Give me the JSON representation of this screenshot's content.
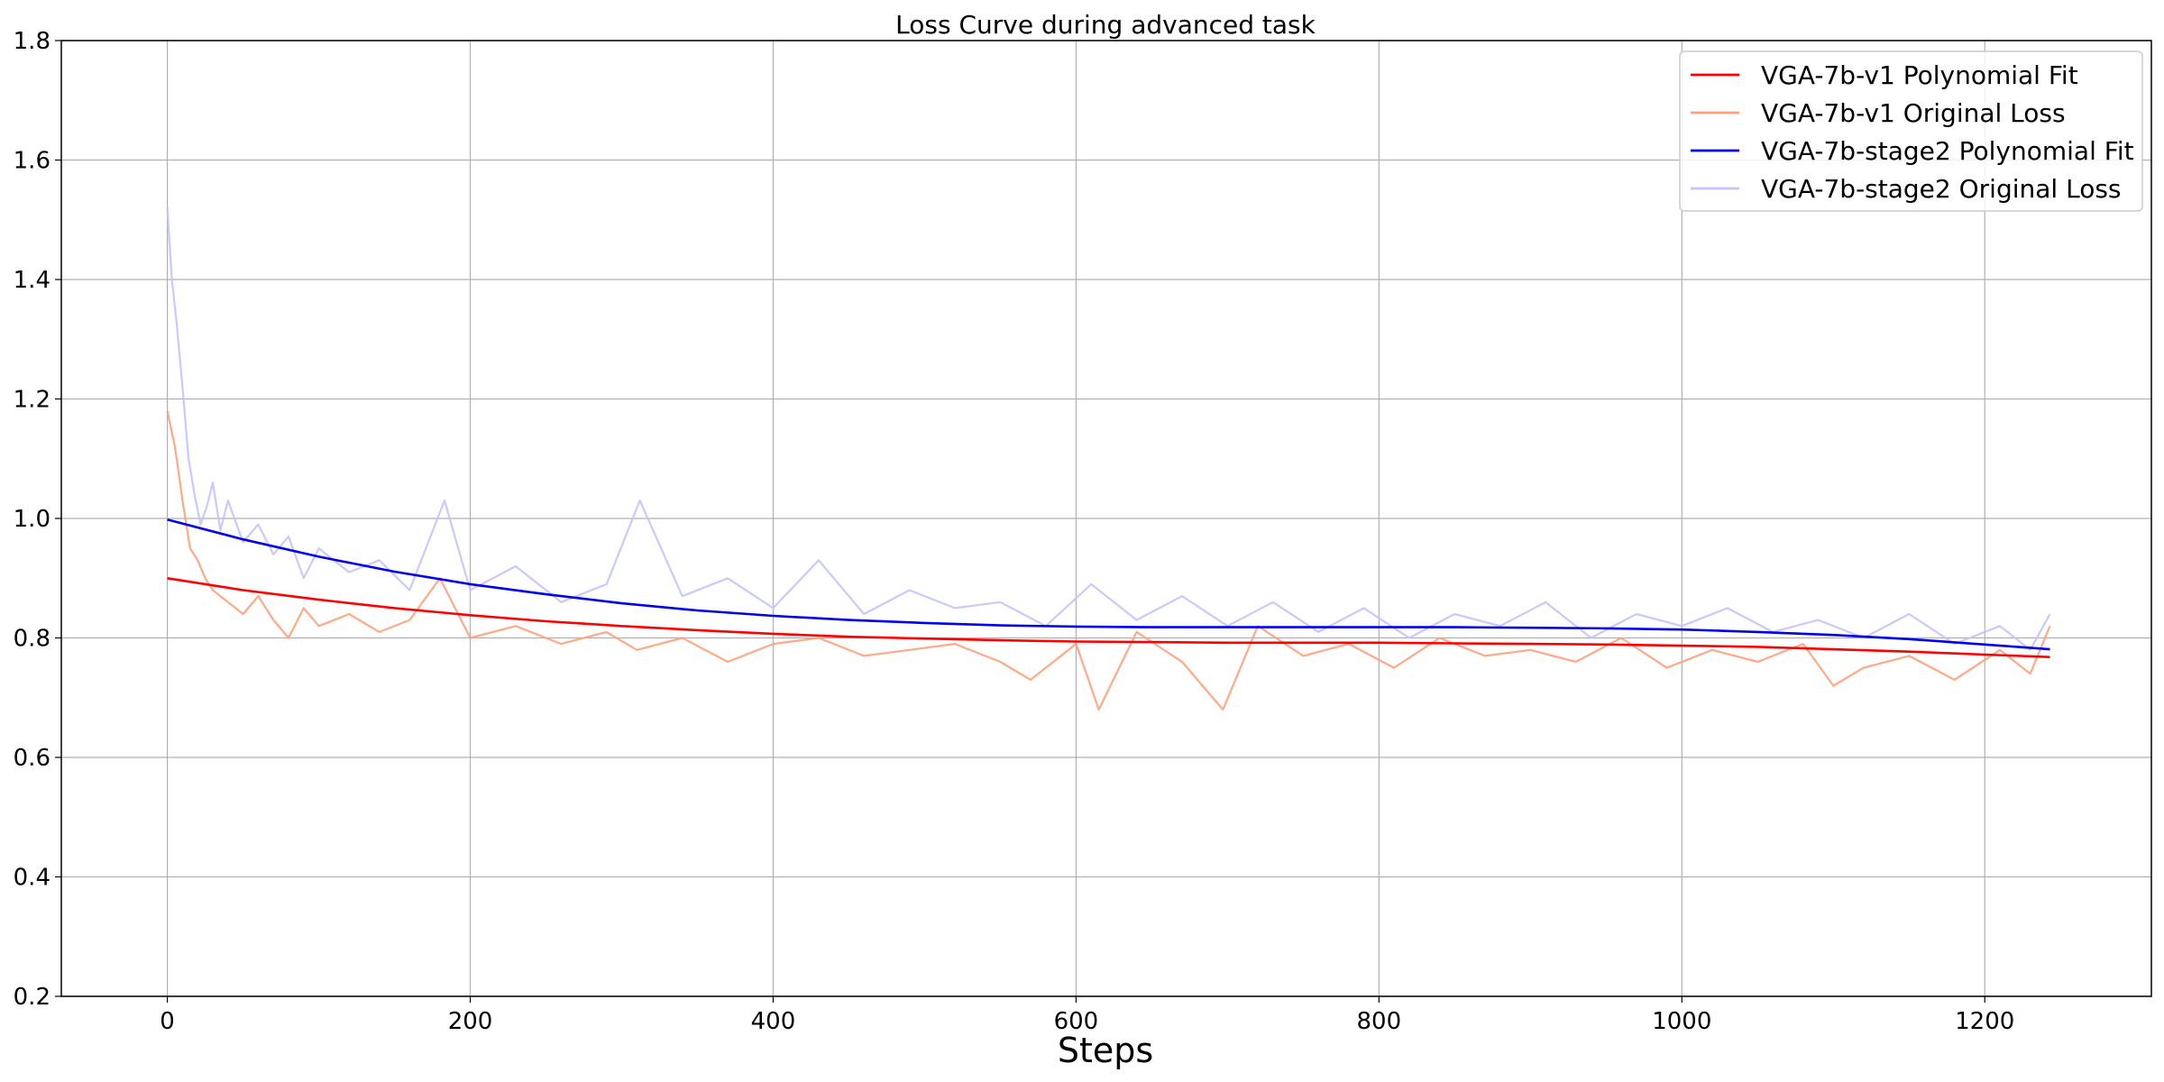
{
  "chart_data": {
    "type": "line",
    "title": "Loss Curve during advanced task",
    "xlabel": "Steps",
    "ylabel": "",
    "xlim": [
      -70,
      1310
    ],
    "ylim": [
      0.2,
      1.8
    ],
    "xticks": [
      0,
      200,
      400,
      600,
      800,
      1000,
      1200
    ],
    "yticks": [
      0.2,
      0.4,
      0.6,
      0.8,
      1.0,
      1.2,
      1.4,
      1.6,
      1.8
    ],
    "ytick_labels": [
      "0.2",
      "0.4",
      "0.6",
      "0.8",
      "1.0",
      "1.2",
      "1.4",
      "1.6",
      "1.8"
    ],
    "grid": true,
    "legend_position": "top-right",
    "series": [
      {
        "name": "VGA-7b-v1 Polynomial Fit",
        "color": "#ff0000",
        "style": "fit",
        "x": [
          0,
          50,
          100,
          150,
          200,
          250,
          300,
          350,
          400,
          450,
          500,
          550,
          600,
          650,
          700,
          750,
          800,
          850,
          900,
          950,
          1000,
          1050,
          1100,
          1150,
          1200,
          1243
        ],
        "y": [
          0.9,
          0.88,
          0.864,
          0.85,
          0.838,
          0.828,
          0.82,
          0.813,
          0.807,
          0.802,
          0.799,
          0.796,
          0.794,
          0.793,
          0.792,
          0.792,
          0.792,
          0.791,
          0.79,
          0.789,
          0.787,
          0.785,
          0.781,
          0.777,
          0.772,
          0.768
        ]
      },
      {
        "name": "VGA-7b-v1 Original Loss",
        "color": "#ffa07a",
        "style": "raw",
        "x": [
          0,
          5,
          10,
          15,
          20,
          25,
          30,
          40,
          50,
          60,
          70,
          80,
          90,
          100,
          120,
          140,
          160,
          180,
          200,
          230,
          260,
          290,
          310,
          340,
          370,
          400,
          430,
          460,
          490,
          520,
          550,
          570,
          600,
          615,
          640,
          670,
          697,
          720,
          750,
          780,
          810,
          840,
          870,
          900,
          930,
          960,
          990,
          1020,
          1050,
          1080,
          1100,
          1120,
          1150,
          1180,
          1210,
          1230,
          1243
        ],
        "y": [
          1.18,
          1.12,
          1.03,
          0.95,
          0.93,
          0.9,
          0.88,
          0.86,
          0.84,
          0.87,
          0.83,
          0.8,
          0.85,
          0.82,
          0.84,
          0.81,
          0.83,
          0.9,
          0.8,
          0.82,
          0.79,
          0.81,
          0.78,
          0.8,
          0.76,
          0.79,
          0.8,
          0.77,
          0.78,
          0.79,
          0.76,
          0.73,
          0.79,
          0.68,
          0.81,
          0.76,
          0.68,
          0.82,
          0.77,
          0.79,
          0.75,
          0.8,
          0.77,
          0.78,
          0.76,
          0.8,
          0.75,
          0.78,
          0.76,
          0.79,
          0.72,
          0.75,
          0.77,
          0.73,
          0.78,
          0.74,
          0.82
        ]
      },
      {
        "name": "VGA-7b-stage2 Polynomial Fit",
        "color": "#0000ee",
        "style": "fit",
        "x": [
          0,
          50,
          100,
          150,
          200,
          250,
          300,
          350,
          400,
          450,
          500,
          550,
          600,
          650,
          700,
          750,
          800,
          850,
          900,
          950,
          1000,
          1050,
          1100,
          1150,
          1200,
          1243
        ],
        "y": [
          0.998,
          0.965,
          0.936,
          0.911,
          0.89,
          0.873,
          0.858,
          0.846,
          0.837,
          0.83,
          0.825,
          0.821,
          0.819,
          0.818,
          0.818,
          0.818,
          0.818,
          0.818,
          0.817,
          0.816,
          0.814,
          0.81,
          0.805,
          0.798,
          0.789,
          0.781
        ]
      },
      {
        "name": "VGA-7b-stage2 Original Loss",
        "color": "#c3c3ff",
        "style": "raw",
        "x": [
          0,
          3,
          6,
          10,
          14,
          18,
          22,
          26,
          30,
          35,
          40,
          50,
          60,
          70,
          80,
          90,
          100,
          120,
          140,
          160,
          183,
          200,
          230,
          260,
          290,
          312,
          340,
          370,
          400,
          430,
          460,
          490,
          520,
          550,
          580,
          610,
          640,
          670,
          700,
          730,
          760,
          790,
          820,
          850,
          880,
          910,
          940,
          970,
          1000,
          1030,
          1060,
          1090,
          1120,
          1150,
          1180,
          1210,
          1230,
          1243
        ],
        "y": [
          1.52,
          1.4,
          1.33,
          1.22,
          1.1,
          1.04,
          0.99,
          1.02,
          1.06,
          0.98,
          1.03,
          0.96,
          0.99,
          0.94,
          0.97,
          0.9,
          0.95,
          0.91,
          0.93,
          0.88,
          1.03,
          0.88,
          0.92,
          0.86,
          0.89,
          1.03,
          0.87,
          0.9,
          0.85,
          0.93,
          0.84,
          0.88,
          0.85,
          0.86,
          0.82,
          0.89,
          0.83,
          0.87,
          0.82,
          0.86,
          0.81,
          0.85,
          0.8,
          0.84,
          0.82,
          0.86,
          0.8,
          0.84,
          0.82,
          0.85,
          0.81,
          0.83,
          0.8,
          0.84,
          0.79,
          0.82,
          0.78,
          0.84
        ]
      }
    ]
  }
}
